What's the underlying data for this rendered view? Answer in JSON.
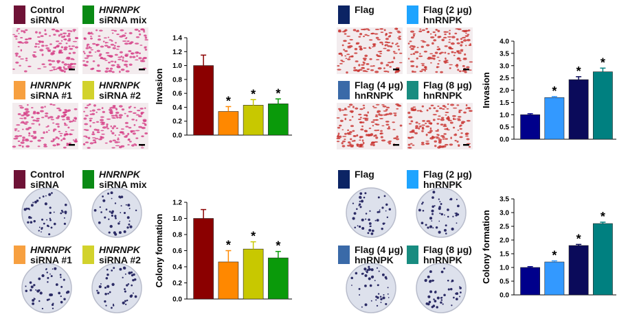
{
  "chart_data": [
    {
      "type": "bar",
      "ylabel": "Invasion",
      "categories": [
        "Control\nsiRNA",
        "HNRNPK\nsiRNA mix",
        "HNRNPK\nsiRNA #1",
        "HNRNPK\nsiRNA #2"
      ],
      "italic_first_line": [
        false,
        true,
        true,
        true
      ],
      "legend_colors": [
        "#6e1236",
        "#0a8a14",
        "#f7a040",
        "#d2d22c"
      ],
      "colors": [
        "#8b0000",
        "#ff8800",
        "#c8c800",
        "#0a9a0a"
      ],
      "values": [
        1.0,
        0.34,
        0.43,
        0.45
      ],
      "errors": [
        0.15,
        0.07,
        0.08,
        0.07
      ],
      "significance": [
        null,
        "*",
        "*",
        "*"
      ],
      "ylim": [
        0,
        1.4
      ],
      "yticks": [
        {
          "value": 0,
          "label": "0.0"
        },
        0.2,
        0.4,
        0.6,
        0.8,
        {
          "value": 1,
          "label": "1.0"
        },
        1.2,
        1.4
      ]
    },
    {
      "type": "bar",
      "ylabel": "Invasion",
      "categories": [
        "Flag",
        "Flag (2 μg)\nhnRNPK",
        "Flag (4 μg)\nhnRNPK",
        "Flag (8 μg)\nhnRNPK"
      ],
      "italic_first_line": [
        false,
        false,
        false,
        false
      ],
      "legend_colors": [
        "#0c2464",
        "#1ea4ff",
        "#3a6aa8",
        "#188c80"
      ],
      "colors": [
        "#00008b",
        "#3399ff",
        "#0a0a5a",
        "#008080"
      ],
      "values": [
        1.0,
        1.7,
        2.43,
        2.75
      ],
      "errors": [
        0.04,
        0.04,
        0.12,
        0.15
      ],
      "significance": [
        null,
        "*",
        "*",
        "*"
      ],
      "ylim": [
        0,
        4
      ],
      "yticks": [
        {
          "value": 0,
          "label": "0.0"
        },
        0.5,
        {
          "value": 1,
          "label": "1.0"
        },
        1.5,
        {
          "value": 2,
          "label": "2.0"
        },
        2.5,
        {
          "value": 3,
          "label": "3.0"
        },
        3.5,
        {
          "value": 4,
          "label": "4.0"
        }
      ]
    },
    {
      "type": "bar",
      "ylabel": "Colony formation",
      "categories": [
        "Control\nsiRNA",
        "HNRNPK\nsiRNA mix",
        "HNRNPK\nsiRNA #1",
        "HNRNPK\nsiRNA #2"
      ],
      "italic_first_line": [
        false,
        true,
        true,
        true
      ],
      "legend_colors": [
        "#6e1236",
        "#0a8a14",
        "#f7a040",
        "#d2d22c"
      ],
      "colors": [
        "#8b0000",
        "#ff8800",
        "#c8c800",
        "#0a9a0a"
      ],
      "values": [
        1.0,
        0.46,
        0.62,
        0.51
      ],
      "errors": [
        0.11,
        0.14,
        0.09,
        0.08
      ],
      "significance": [
        null,
        "*",
        "*",
        "*"
      ],
      "ylim": [
        0,
        1.2
      ],
      "yticks": [
        {
          "value": 0,
          "label": "0.0"
        },
        0.2,
        0.4,
        0.6,
        0.8,
        {
          "value": 1,
          "label": "1.0"
        },
        1.2
      ]
    },
    {
      "type": "bar",
      "ylabel": "Colony formation",
      "categories": [
        "Flag",
        "Flag (2 μg)\nhnRNPK",
        "Flag (4 μg)\nhnRNPK",
        "Flag (8 μg)\nhnRNPK"
      ],
      "italic_first_line": [
        false,
        false,
        false,
        false
      ],
      "legend_colors": [
        "#0c2464",
        "#1ea4ff",
        "#3a6aa8",
        "#188c80"
      ],
      "colors": [
        "#00008b",
        "#3399ff",
        "#0a0a5a",
        "#008080"
      ],
      "values": [
        1.0,
        1.2,
        1.8,
        2.6
      ],
      "errors": [
        0.03,
        0.04,
        0.04,
        0.05
      ],
      "significance": [
        null,
        "*",
        "*",
        "*"
      ],
      "ylim": [
        0,
        3.5
      ],
      "yticks": [
        {
          "value": 0,
          "label": "0.0"
        },
        0.5,
        {
          "value": 1,
          "label": "1.0"
        },
        1.5,
        {
          "value": 2,
          "label": "2.0"
        },
        2.5,
        {
          "value": 3,
          "label": "3.0"
        },
        3.5
      ]
    }
  ]
}
